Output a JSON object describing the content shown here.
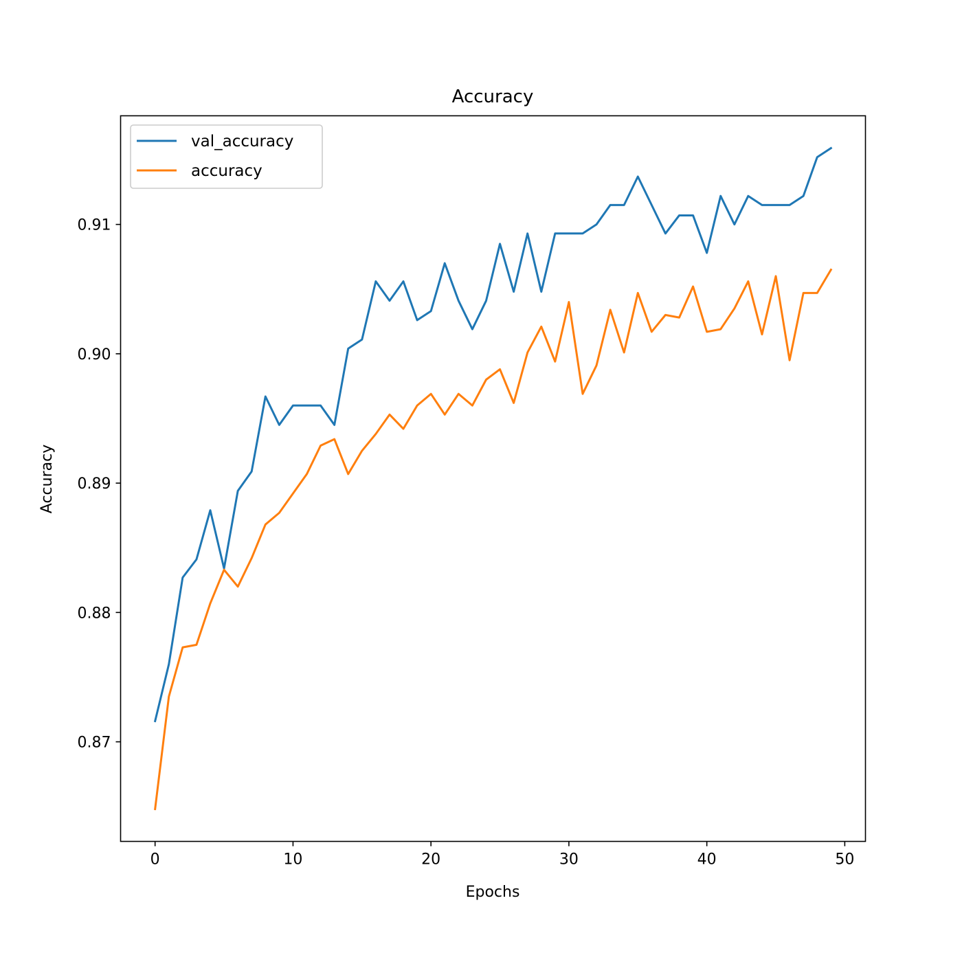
{
  "chart_data": {
    "type": "line",
    "title": "Accuracy",
    "xlabel": "Epochs",
    "ylabel": "Accuracy",
    "xlim": [
      -2.5,
      51.5
    ],
    "ylim": [
      0.8623,
      0.9184
    ],
    "xticks": [
      0,
      10,
      20,
      30,
      40,
      50
    ],
    "xtick_labels": [
      "0",
      "10",
      "20",
      "30",
      "40",
      "50"
    ],
    "yticks": [
      0.87,
      0.88,
      0.89,
      0.9,
      0.91
    ],
    "ytick_labels": [
      "0.87",
      "0.88",
      "0.89",
      "0.90",
      "0.91"
    ],
    "grid": false,
    "legend": "top-left",
    "x": [
      0,
      1,
      2,
      3,
      4,
      5,
      6,
      7,
      8,
      9,
      10,
      11,
      12,
      13,
      14,
      15,
      16,
      17,
      18,
      19,
      20,
      21,
      22,
      23,
      24,
      25,
      26,
      27,
      28,
      29,
      30,
      31,
      32,
      33,
      34,
      35,
      36,
      37,
      38,
      39,
      40,
      41,
      42,
      43,
      44,
      45,
      46,
      47,
      48,
      49
    ],
    "series": [
      {
        "name": "val_accuracy",
        "color": "#1f77b4",
        "values": [
          0.8716,
          0.876,
          0.8827,
          0.8841,
          0.8879,
          0.8834,
          0.8894,
          0.8909,
          0.8967,
          0.8945,
          0.896,
          0.896,
          0.896,
          0.8945,
          0.9004,
          0.9011,
          0.9056,
          0.9041,
          0.9056,
          0.9026,
          0.9033,
          0.907,
          0.9041,
          0.9019,
          0.9041,
          0.9085,
          0.9048,
          0.9093,
          0.9048,
          0.9093,
          0.9093,
          0.9093,
          0.91,
          0.9115,
          0.9115,
          0.9137,
          0.9115,
          0.9093,
          0.9107,
          0.9107,
          0.9078,
          0.9122,
          0.91,
          0.9122,
          0.9115,
          0.9115,
          0.9115,
          0.9122,
          0.9152,
          0.9159
        ]
      },
      {
        "name": "accuracy",
        "color": "#ff7f0e",
        "values": [
          0.8648,
          0.8735,
          0.8773,
          0.8775,
          0.8807,
          0.8833,
          0.882,
          0.8842,
          0.8868,
          0.8877,
          0.8892,
          0.8907,
          0.8929,
          0.8934,
          0.8907,
          0.8925,
          0.8938,
          0.8953,
          0.8942,
          0.896,
          0.8969,
          0.8953,
          0.8969,
          0.896,
          0.898,
          0.8988,
          0.8962,
          0.9001,
          0.9021,
          0.8994,
          0.904,
          0.8969,
          0.8991,
          0.9034,
          0.9001,
          0.9047,
          0.9017,
          0.903,
          0.9028,
          0.9052,
          0.9017,
          0.9019,
          0.9035,
          0.9056,
          0.9015,
          0.906,
          0.8995,
          0.9047,
          0.9047,
          0.9065
        ]
      }
    ]
  }
}
